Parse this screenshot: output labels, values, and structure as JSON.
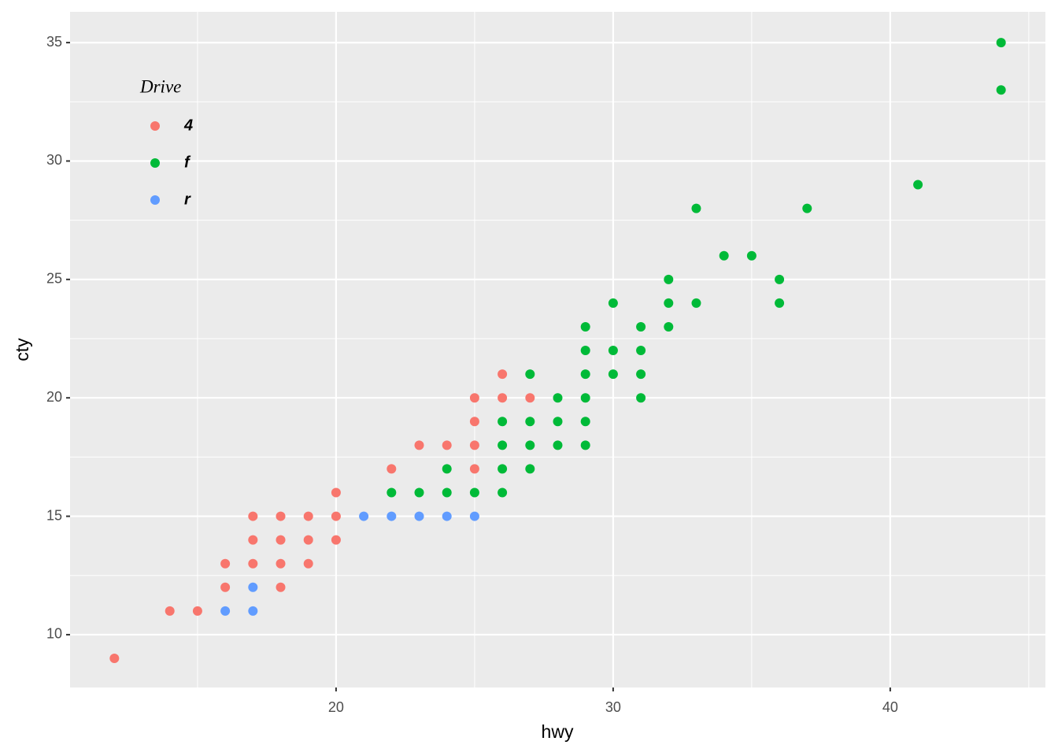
{
  "chart_data": {
    "type": "scatter",
    "x_label": "hwy",
    "y_label": "cty",
    "legend_title": "Drive",
    "legend_position": "top-left",
    "xlim": [
      10.4,
      45.6
    ],
    "ylim": [
      7.77,
      36.3
    ],
    "xticks": [
      20,
      30,
      40
    ],
    "yticks": [
      10,
      15,
      20,
      25,
      30,
      35
    ],
    "grid": true,
    "series": [
      {
        "name": "4",
        "color": "#F8766D",
        "x": [
          12,
          14,
          15,
          16,
          16,
          17,
          17,
          17,
          18,
          18,
          18,
          18,
          19,
          19,
          19,
          20,
          20,
          20,
          22,
          23,
          24,
          25,
          25,
          25,
          25,
          26,
          26,
          27
        ],
        "y": [
          9,
          11,
          11,
          13,
          12,
          15,
          14,
          13,
          15,
          14,
          13,
          12,
          15,
          14,
          13,
          16,
          15,
          14,
          17,
          18,
          18,
          20,
          19,
          18,
          17,
          21,
          20,
          20
        ]
      },
      {
        "name": "f",
        "color": "#00BA38",
        "x": [
          22,
          23,
          24,
          24,
          25,
          26,
          26,
          26,
          26,
          27,
          27,
          27,
          27,
          28,
          28,
          28,
          29,
          29,
          29,
          29,
          29,
          29,
          30,
          30,
          30,
          31,
          31,
          31,
          31,
          32,
          32,
          32,
          33,
          33,
          34,
          35,
          36,
          36,
          37,
          41,
          44,
          44
        ],
        "y": [
          16,
          16,
          17,
          16,
          16,
          19,
          18,
          17,
          16,
          21,
          19,
          18,
          17,
          20,
          19,
          18,
          23,
          22,
          21,
          20,
          19,
          18,
          24,
          22,
          21,
          23,
          22,
          21,
          20,
          25,
          24,
          23,
          28,
          24,
          26,
          26,
          25,
          24,
          28,
          29,
          35,
          33
        ]
      },
      {
        "name": "r",
        "color": "#619CFF",
        "x": [
          16,
          17,
          17,
          21,
          22,
          23,
          24,
          25
        ],
        "y": [
          11,
          12,
          11,
          15,
          15,
          15,
          15,
          15
        ]
      }
    ]
  }
}
